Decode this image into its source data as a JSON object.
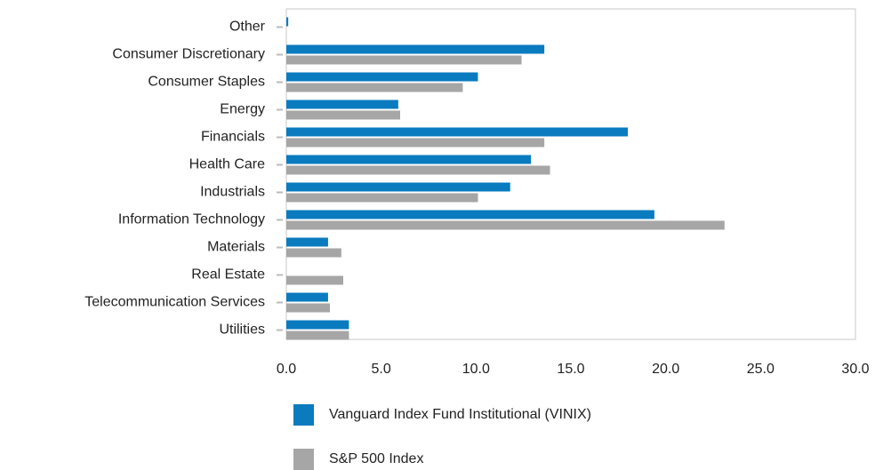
{
  "chart_data": {
    "type": "bar",
    "orientation": "horizontal",
    "categories": [
      "Other",
      "Consumer Discretionary",
      "Consumer Staples",
      "Energy",
      "Financials",
      "Health Care",
      "Industrials",
      "Information Technology",
      "Materials",
      "Real Estate",
      "Telecommunication Services",
      "Utilities"
    ],
    "series": [
      {
        "name": "Vanguard Index Fund Institutional (VINIX)",
        "color": "#0a7bbf",
        "values": [
          0.1,
          13.6,
          10.1,
          5.9,
          18.0,
          12.9,
          11.8,
          19.4,
          2.2,
          null,
          2.2,
          3.3
        ]
      },
      {
        "name": "S&P 500 Index",
        "color": "#a6a6a6",
        "values": [
          null,
          12.4,
          9.3,
          6.0,
          13.6,
          13.9,
          10.1,
          23.1,
          2.9,
          3.0,
          2.3,
          3.3
        ]
      }
    ],
    "xlim": [
      0,
      30
    ],
    "xticks": [
      {
        "value": 0,
        "label": "0.0"
      },
      {
        "value": 5,
        "label": "5.0"
      },
      {
        "value": 10,
        "label": "10.0"
      },
      {
        "value": 15,
        "label": "15.0"
      },
      {
        "value": 20,
        "label": "20.0"
      },
      {
        "value": 25,
        "label": "25.0"
      },
      {
        "value": 30,
        "label": "30.0"
      }
    ],
    "grid": false,
    "legend": "bottom"
  }
}
